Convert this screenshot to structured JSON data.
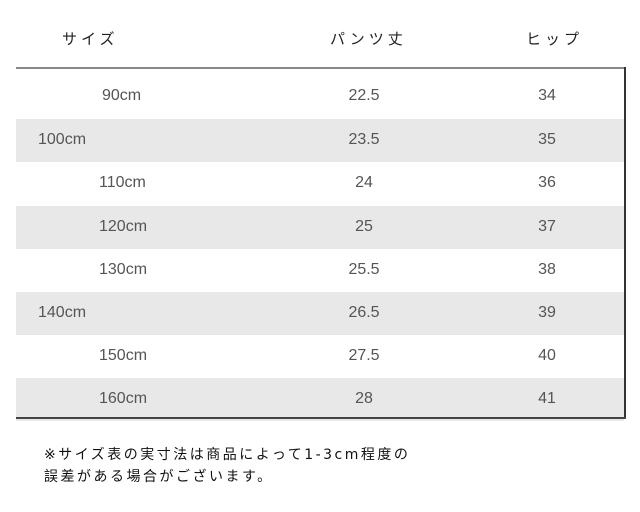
{
  "headers": [
    "サイズ",
    "パンツ丈",
    "ヒップ"
  ],
  "rows": [
    {
      "size": "90cm",
      "length": "22.5",
      "hip": "34"
    },
    {
      "size": "100cm",
      "length": "23.5",
      "hip": "35"
    },
    {
      "size": "110cm",
      "length": "24",
      "hip": "36"
    },
    {
      "size": "120cm",
      "length": "25",
      "hip": "37"
    },
    {
      "size": "130cm",
      "length": "25.5",
      "hip": "38"
    },
    {
      "size": "140cm",
      "length": "26.5",
      "hip": "39"
    },
    {
      "size": "150cm",
      "length": "27.5",
      "hip": "40"
    },
    {
      "size": "160cm",
      "length": "28",
      "hip": "41"
    }
  ],
  "note": {
    "line1": "※サイズ表の実寸法は商品によって1-3cm程度の",
    "line2": "誤差がある場合がございます。"
  },
  "colors": {
    "shade": "#e8e8e8"
  }
}
